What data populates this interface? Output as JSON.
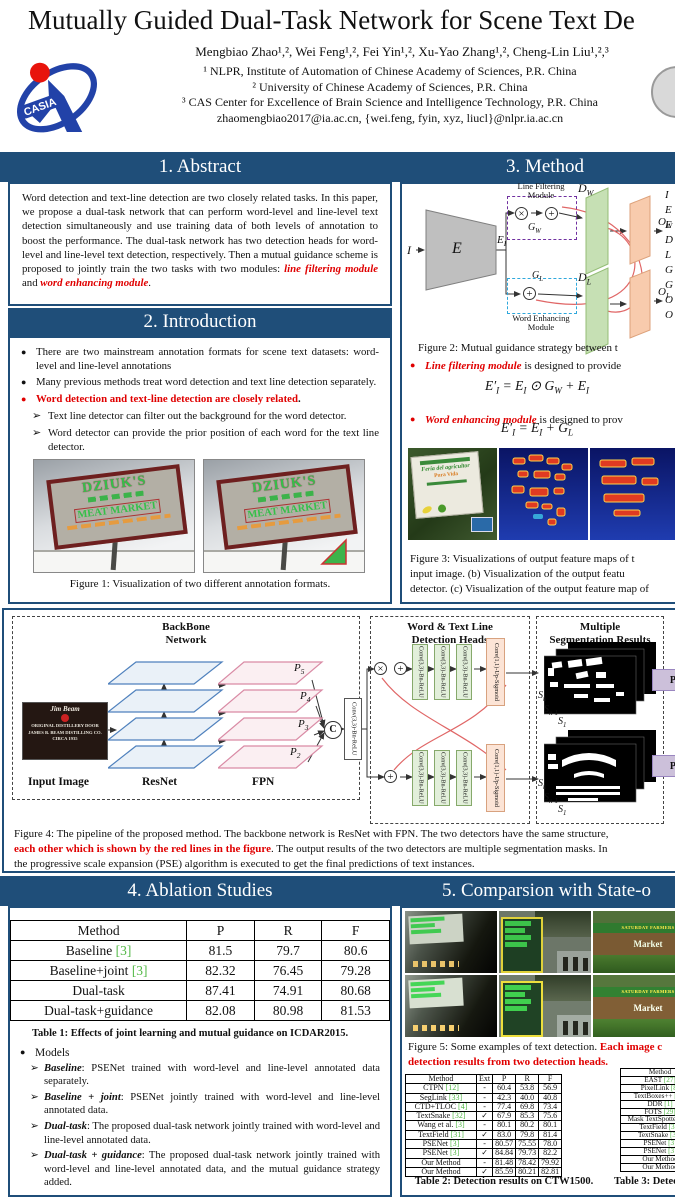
{
  "theme": {
    "navy": "#1F4E79",
    "red": "#e00000",
    "cite_green": "#54b948"
  },
  "header": {
    "title": "Mutually Guided Dual-Task Network for Scene Text De",
    "authors": "Mengbiao Zhao¹,², Wei Feng¹,², Fei Yin¹,², Xu-Yao Zhang¹,², Cheng-Lin Liu¹,²,³",
    "affil1": "¹ NLPR, Institute of Automation of Chinese Academy of Sciences, P.R. China",
    "affil2": "² University of Chinese Academy of Sciences, P.R. China",
    "affil3": "³ CAS Center for Excellence of Brain Science and Intelligence Technology, P.R. China",
    "email": "zhaomengbiao2017@ia.ac.cn, {wei.feng, fyin, xyz, liucl}@nlpr.ia.ac.cn",
    "logo_text": "CASIA"
  },
  "sections": {
    "s1": "1. Abstract",
    "s2": "2. Introduction",
    "s3": "3. Method",
    "s4": "4. Ablation Studies",
    "s5": "5. Comparsion with State-o"
  },
  "abstract": {
    "p": "Word detection and text-line detection are two closely related tasks. In this paper, we propose a dual-task network that can perform word-level and line-level text detection simultaneously and use training data of both levels of annotation to boost the performance. The dual-task network has two detection heads for word-level and line-level text detection, respectively. Then a mutual guidance scheme is proposed to jointly train the two tasks with two modules: ",
    "red1": "line filtering module",
    "mid": " and ",
    "red2": "word enhancing module",
    "end": "."
  },
  "intro": {
    "b1": "There are two mainstream annotation formats for scene text datasets: word-level and line-level annotations",
    "b2": "Many previous methods treat word detection and text line detection separately.",
    "b3_red": "Word detection and text-line detection are closely related",
    "b3_end": ".",
    "s1": "Text line detector can filter out the background for the word detector.",
    "s2": "Word detector can provide the prior position of each word for the text line detector.",
    "fig1_caption": "Figure 1: Visualization of two different annotation formats.",
    "sign1": "DZIUK'S",
    "sign2": "MEAT MARKET"
  },
  "method": {
    "fig2_caption": "Figure 2: Mutual guidance strategy between t",
    "b1_term": "Line filtering module",
    "b1_rest": " is designed to provide",
    "f1": "E′_I = E_I ⊙ G_W + E_I",
    "b2_term": "Word enhancing module",
    "b2_rest": " is designed to prov",
    "f2": "E′_I = E_I + G_L",
    "fig3_cap1": "Figure 3: Visualizations of output feature maps of t",
    "fig3_cap2": "input image. (b) Visualization of the output featu",
    "fig3_cap3": "detector. (c) Visualization of the output feature map of",
    "labels": {
      "i": "I",
      "e": "E",
      "ei": "E_I",
      "dw": "D_W",
      "dl": "D_L",
      "gw": "G_W",
      "gl": "G_L",
      "ow": "O_W",
      "ol": "O_L",
      "lf1": "Line Filtering",
      "lf2": "Module",
      "we1": "Word Enhancing",
      "we2": "Module"
    },
    "legend": [
      "I",
      "E",
      "E",
      "D",
      "L",
      "G",
      "G",
      "O",
      "O"
    ],
    "sign_l1": "Feria del agricultor",
    "sign_l2": "Pura Vida"
  },
  "fig4": {
    "bb1": "BackBone",
    "bb2": "Network",
    "hd1": "Word & Text Line",
    "hd2": "Detection Heads",
    "sg1": "Multiple",
    "sg2": "Segmentation Results",
    "input_label": "Input Image",
    "resnet": "ResNet",
    "fpn": "FPN",
    "p5": "P_5",
    "p4": "P_4",
    "p3": "P_3",
    "p2": "P_2",
    "c": "C",
    "conv33": "Conv(3,3)-Bn-ReLU",
    "conv11": "Conv(1,1)-Up-Sigmoid",
    "sn": "S_n",
    "snm1": "S_{n-1}",
    "s1": "S_1",
    "pse": "PSE",
    "jim_brand": "Jim Beam",
    "jim_l1": "ORIGINAL DISTILLERY DOOR",
    "jim_l2": "JAMES B. BEAM DISTILLING CO.",
    "jim_l3": "CIRCA 1935",
    "cap1": "Figure 4: The pipeline of the proposed method. The backbone network is ResNet with FPN. The two detectors have the same structure,",
    "cap2_red": "each other which is shown by the red lines in the figure",
    "cap2_rest": ". The output results of the two detectors are multiple segmentation masks. In",
    "cap3": "the progressive scale expansion (PSE) algorithm is executed to get the final predictions of text instances."
  },
  "ablation": {
    "table1": {
      "headers": [
        "Method",
        "P",
        "R",
        "F"
      ],
      "rows": [
        {
          "m": "Baseline",
          "cite": "[3]",
          "cells": [
            "81.5",
            "79.7",
            "80.6"
          ],
          "bold": []
        },
        {
          "m": "Baseline+joint",
          "cite": "[3]",
          "cells": [
            "82.32",
            "76.45",
            "79.28"
          ],
          "bold": []
        },
        {
          "m": "Dual-task",
          "cite": "",
          "cells": [
            "87.41",
            "74.91",
            "80.68"
          ],
          "bold": [
            0
          ]
        },
        {
          "m": "Dual-task+guidance",
          "cite": "",
          "cells": [
            "82.08",
            "80.98",
            "81.53"
          ],
          "bold": [
            1,
            2
          ]
        }
      ],
      "caption": "Table 1: Effects of joint learning and mutual guidance on ICDAR2015."
    },
    "models_label": "Models",
    "models": [
      {
        "term": "Baseline",
        "rest": ": PSENet trained with word-level and line-level annotated data separately."
      },
      {
        "term": "Baseline + joint",
        "rest": ": PSENet jointly trained with word-level and line-level annotated data."
      },
      {
        "term": "Dual-task",
        "rest": ": The proposed dual-task network jointly trained with word-level and line-level annotated data."
      },
      {
        "term": "Dual-task + guidance",
        "rest": ": The proposed dual-task network jointly trained with word-level and line-level annotated data, and the mutual guidance strategy added."
      }
    ]
  },
  "comparison": {
    "cap_pre": "Figure 5: Some examples of text detection. ",
    "cap_red1": "Each image c",
    "cap_red2": "detection results from two detection heads.",
    "table2": {
      "headers": [
        "Method",
        "Ext",
        "P",
        "R",
        "F"
      ],
      "rows": [
        {
          "m": "CTPN",
          "cite": "[12]",
          "ext": "-",
          "cells": [
            "60.4",
            "53.8",
            "56.9"
          ],
          "bold": []
        },
        {
          "m": "SegLink",
          "cite": "[33]",
          "ext": "-",
          "cells": [
            "42.3",
            "40.0",
            "40.8"
          ],
          "bold": []
        },
        {
          "m": "CTD+TLOC",
          "cite": "[4]",
          "ext": "-",
          "cells": [
            "77.4",
            "69.8",
            "73.4"
          ],
          "bold": []
        },
        {
          "m": "TextSnake",
          "cite": "[32]",
          "ext": "✓",
          "cells": [
            "67.9",
            "85.3",
            "75.6"
          ],
          "bold": [
            1
          ]
        },
        {
          "m": "Wang et al.",
          "cite": "[3]",
          "ext": "-",
          "cells": [
            "80.1",
            "80.2",
            "80.1"
          ],
          "bold": []
        },
        {
          "m": "TextField",
          "cite": "[31]",
          "ext": "✓",
          "cells": [
            "83.0",
            "79.8",
            "81.4"
          ],
          "bold": []
        },
        {
          "m": "PSENet",
          "cite": "[3]",
          "ext": "-",
          "cells": [
            "80.57",
            "75.55",
            "78.0"
          ],
          "bold": []
        },
        {
          "m": "PSENet",
          "cite": "[3]",
          "ext": "✓",
          "cells": [
            "84.84",
            "79.73",
            "82.2"
          ],
          "bold": []
        },
        {
          "m": "Our Method",
          "cite": "",
          "ext": "-",
          "cells": [
            "81.48",
            "78.42",
            "79.92"
          ],
          "bold": []
        },
        {
          "m": "Our Method",
          "cite": "",
          "ext": "✓",
          "cells": [
            "85.59",
            "80.21",
            "82.81"
          ],
          "bold": [
            0,
            2
          ]
        }
      ],
      "caption": "Table 2: Detection results on CTW1500."
    },
    "table3": {
      "headers": [
        "Method"
      ],
      "rows": [
        {
          "m": "EAST",
          "cite": "[27]"
        },
        {
          "m": "PixelLink",
          "cite": "[8]"
        },
        {
          "m": "TextBoxes++",
          "cite": "[28]"
        },
        {
          "m": "DDR",
          "cite": "[1]"
        },
        {
          "m": "FOTS",
          "cite": "[29]"
        },
        {
          "m": "Mask TextSpotter",
          "cite": "[30]"
        },
        {
          "m": "TextField",
          "cite": "[31]"
        },
        {
          "m": "TextSnake",
          "cite": "[32]"
        },
        {
          "m": "PSENet",
          "cite": "[3]"
        },
        {
          "m": "PSENet",
          "cite": "[3]"
        },
        {
          "m": "Our Method",
          "cite": ""
        },
        {
          "m": "Our Method",
          "cite": ""
        }
      ],
      "caption": "Table 3: Detectio"
    },
    "market_l1": "SATURDAY FARMERS",
    "market_l2": "Market"
  }
}
